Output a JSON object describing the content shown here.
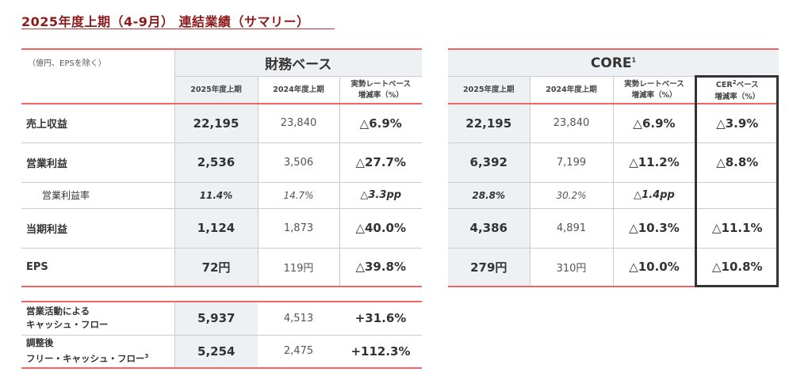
{
  "title": "2025年度上期（4-9月） 連結業績（サマリー）",
  "unit_note": "（億円、EPSを除く）",
  "financial": {
    "group_label": "財務ベース",
    "headers": [
      "2025年度上期",
      "2024年度上期",
      "実勢レートベース",
      "増減率（%）"
    ],
    "rows": [
      {
        "label": "売上収益",
        "cur": "22,195",
        "prev": "23,840",
        "chg": "△6.9%"
      },
      {
        "label": "営業利益",
        "cur": "2,536",
        "prev": "3,506",
        "chg": "△27.7%"
      },
      {
        "label": "営業利益率",
        "cur": "11.4%",
        "prev": "14.7%",
        "chg": "△3.3pp"
      },
      {
        "label": "当期利益",
        "cur": "1,124",
        "prev": "1,873",
        "chg": "△40.0%"
      },
      {
        "label": "EPS",
        "cur": "72円",
        "prev": "119円",
        "chg": "△39.8%"
      }
    ]
  },
  "core": {
    "group_label": "CORE",
    "group_sup": "1",
    "headers": [
      "2025年度上期",
      "2024年度上期",
      "実勢レートベース",
      "増減率（%）",
      "CER",
      "2",
      "ベース",
      "増減率（%）"
    ],
    "rows": [
      {
        "cur": "22,195",
        "prev": "23,840",
        "chg": "△6.9%",
        "cer": "△3.9%"
      },
      {
        "cur": "6,392",
        "prev": "7,199",
        "chg": "△11.2%",
        "cer": "△8.8%"
      },
      {
        "cur": "28.8%",
        "prev": "30.2%",
        "chg": "△1.4pp",
        "cer": ""
      },
      {
        "cur": "4,386",
        "prev": "4,891",
        "chg": "△10.3%",
        "cer": "△11.1%"
      },
      {
        "cur": "279円",
        "prev": "310円",
        "chg": "△10.0%",
        "cer": "△10.8%"
      }
    ]
  },
  "cashflow": {
    "rows": [
      {
        "label1": "営業活動による",
        "label2": "キャッシュ・フロー",
        "sup": "",
        "cur": "5,937",
        "prev": "4,513",
        "chg": "+31.6%"
      },
      {
        "label1": "調整後",
        "label2": "フリー・キャッシュ・フロー",
        "sup": "3",
        "cur": "5,254",
        "prev": "2,475",
        "chg": "+112.3%"
      }
    ]
  }
}
